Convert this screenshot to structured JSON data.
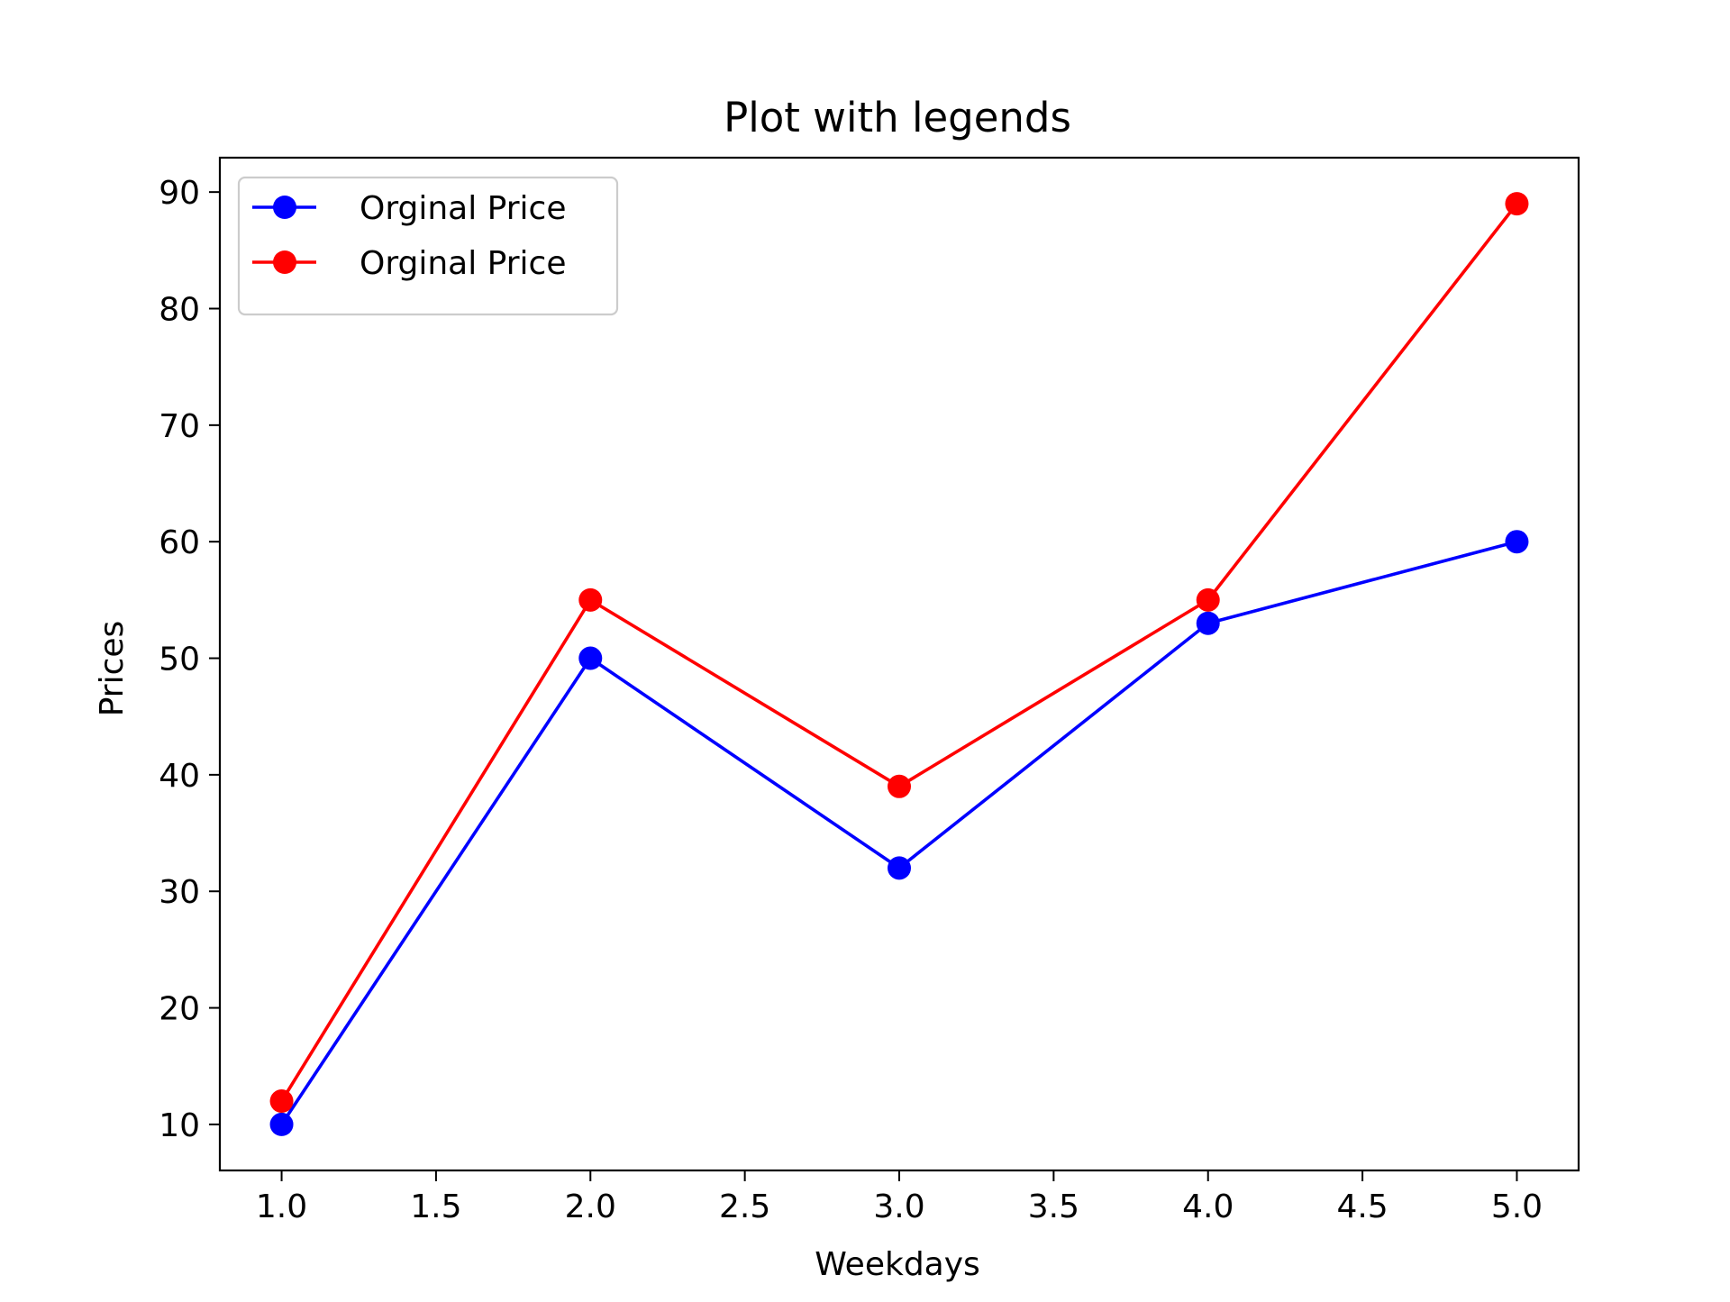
{
  "chart_data": {
    "type": "line",
    "title": "Plot with legends",
    "xlabel": "Weekdays",
    "ylabel": "Prices",
    "x": [
      1,
      2,
      3,
      4,
      5
    ],
    "xlim": [
      0.8,
      5.2
    ],
    "ylim": [
      6.05,
      92.95
    ],
    "x_ticks": [
      "1.0",
      "1.5",
      "2.0",
      "2.5",
      "3.0",
      "3.5",
      "4.0",
      "4.5",
      "5.0"
    ],
    "y_ticks": [
      "10",
      "20",
      "30",
      "40",
      "50",
      "60",
      "70",
      "80",
      "90"
    ],
    "grid": false,
    "legend_position": "top-left",
    "series": [
      {
        "name": "Orginal Price",
        "color": "#0000ff",
        "marker": "circle",
        "values": [
          10,
          50,
          32,
          53,
          60
        ]
      },
      {
        "name": "Orginal Price",
        "color": "#ff0000",
        "marker": "circle",
        "values": [
          12,
          55,
          39,
          55,
          89
        ]
      }
    ]
  }
}
